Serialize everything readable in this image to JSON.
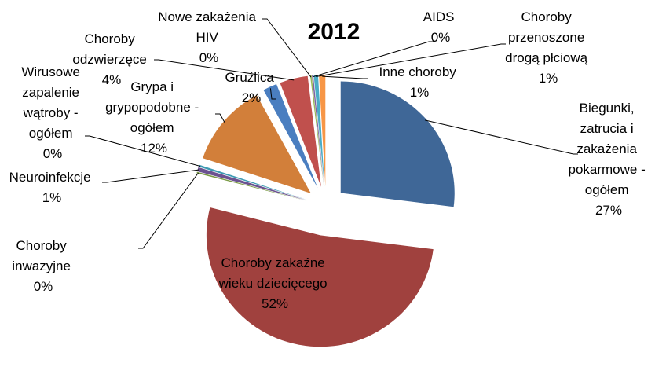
{
  "chart_data": {
    "type": "pie",
    "title": "2012",
    "slices": [
      {
        "label": "Biegunki, zatrucia i zakażenia pokarmowe - ogółem",
        "value": 27,
        "display": "27%",
        "color": "#3F6797"
      },
      {
        "label": "Choroby zakaźne wieku dziecięcego",
        "value": 52,
        "display": "52%",
        "color": "#A0413E"
      },
      {
        "label": "Choroby inwazyjne",
        "value": 0.2,
        "display": "0%",
        "color": "#7A9A45"
      },
      {
        "label": "Neuroinfekcje",
        "value": 0.6,
        "display": "1%",
        "color": "#6B5290"
      },
      {
        "label": "Wirusowe zapalenie wątroby - ogółem",
        "value": 0.3,
        "display": "0%",
        "color": "#3E9AB3"
      },
      {
        "label": "Grypa i grypopodobne - ogółem",
        "value": 12,
        "display": "12%",
        "color": "#D27F3A"
      },
      {
        "label": "Gruźlica",
        "value": 2,
        "display": "2%",
        "color": "#4A7EC0"
      },
      {
        "label": "Choroby odzwierzęce",
        "value": 4,
        "display": "4%",
        "color": "#C0504D"
      },
      {
        "label": "Nowe zakażenia HIV",
        "value": 0.2,
        "display": "0%",
        "color": "#9BBB59"
      },
      {
        "label": "AIDS",
        "value": 0.2,
        "display": "0%",
        "color": "#8064A2"
      },
      {
        "label": "Choroby przenoszone drogą płciową",
        "value": 0.6,
        "display": "1%",
        "color": "#4BACC6"
      },
      {
        "label": "Inne choroby",
        "value": 0.9,
        "display": "1%",
        "color": "#F79646"
      }
    ]
  }
}
